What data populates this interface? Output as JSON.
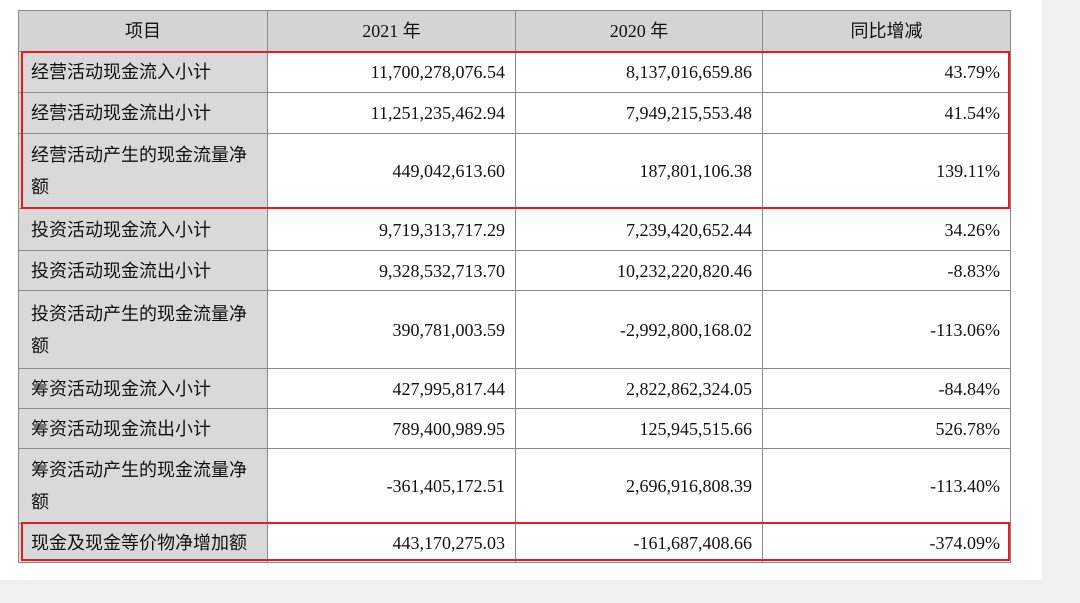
{
  "table": {
    "headers": [
      "项目",
      "2021 年",
      "2020 年",
      "同比增减"
    ],
    "rows": [
      [
        "经营活动现金流入小计",
        "11,700,278,076.54",
        "8,137,016,659.86",
        "43.79%"
      ],
      [
        "经营活动现金流出小计",
        "11,251,235,462.94",
        "7,949,215,553.48",
        "41.54%"
      ],
      [
        "经营活动产生的现金流量净额",
        "449,042,613.60",
        "187,801,106.38",
        "139.11%"
      ],
      [
        "投资活动现金流入小计",
        "9,719,313,717.29",
        "7,239,420,652.44",
        "34.26%"
      ],
      [
        "投资活动现金流出小计",
        "9,328,532,713.70",
        "10,232,220,820.46",
        "-8.83%"
      ],
      [
        "投资活动产生的现金流量净额",
        "390,781,003.59",
        "-2,992,800,168.02",
        "-113.06%"
      ],
      [
        "筹资活动现金流入小计",
        "427,995,817.44",
        "2,822,862,324.05",
        "-84.84%"
      ],
      [
        "筹资活动现金流出小计",
        "789,400,989.95",
        "125,945,515.66",
        "526.78%"
      ],
      [
        "筹资活动产生的现金流量净额",
        "-361,405,172.51",
        "2,696,916,808.39",
        "-113.40%"
      ],
      [
        "现金及现金等价物净增加额",
        "443,170,275.03",
        "-161,687,408.66",
        "-374.09%"
      ]
    ]
  }
}
